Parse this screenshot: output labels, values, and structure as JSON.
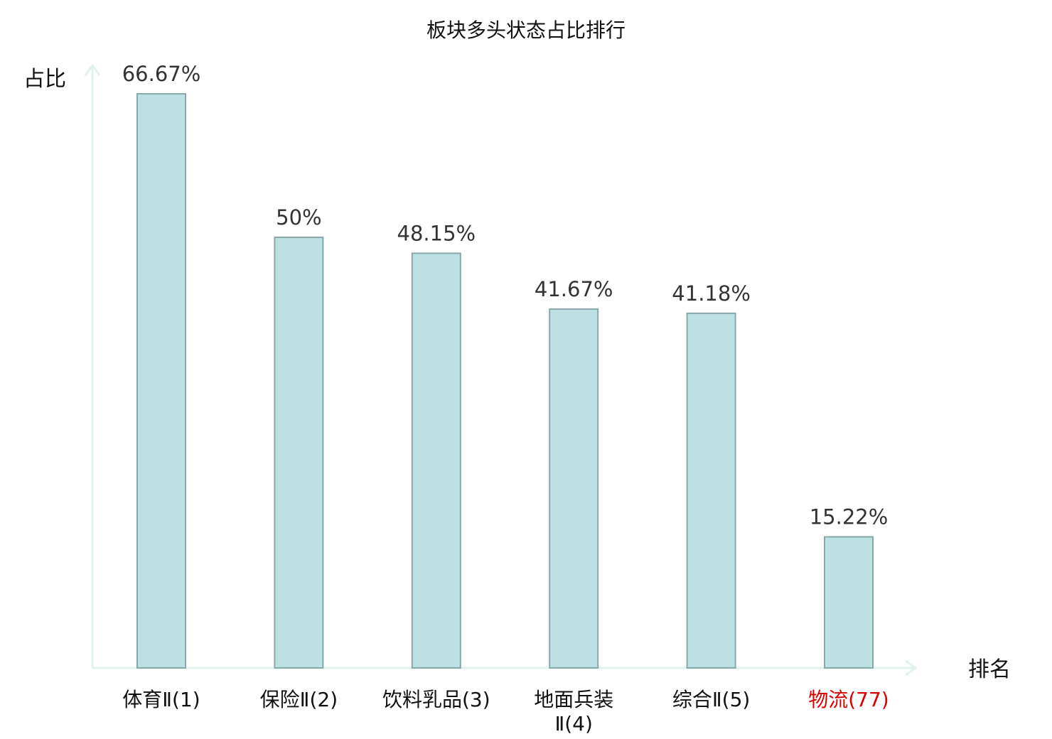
{
  "chart_data": {
    "type": "bar",
    "title": "板块多头状态占比排行",
    "ylabel": "占比",
    "xlabel": "排名",
    "ylim": [
      0,
      70
    ],
    "grid": false,
    "categories": [
      [
        "体育Ⅱ(1)"
      ],
      [
        "保险Ⅱ(2)"
      ],
      [
        "饮料乳品(3)"
      ],
      [
        "地面兵装",
        "Ⅱ(4)"
      ],
      [
        "综合Ⅱ(5)"
      ],
      [
        "物流(77)"
      ]
    ],
    "values": [
      66.67,
      50,
      48.15,
      41.67,
      41.18,
      15.22
    ],
    "value_labels": [
      "66.67%",
      "50%",
      "48.15%",
      "41.67%",
      "41.18%",
      "15.22%"
    ],
    "category_colors": [
      "#111111",
      "#111111",
      "#111111",
      "#111111",
      "#111111",
      "#dd0000"
    ],
    "colors": {
      "bar_fill": "#bde0e3",
      "bar_stroke": "#8aa7aa",
      "axis": "#e0f2ef"
    }
  }
}
